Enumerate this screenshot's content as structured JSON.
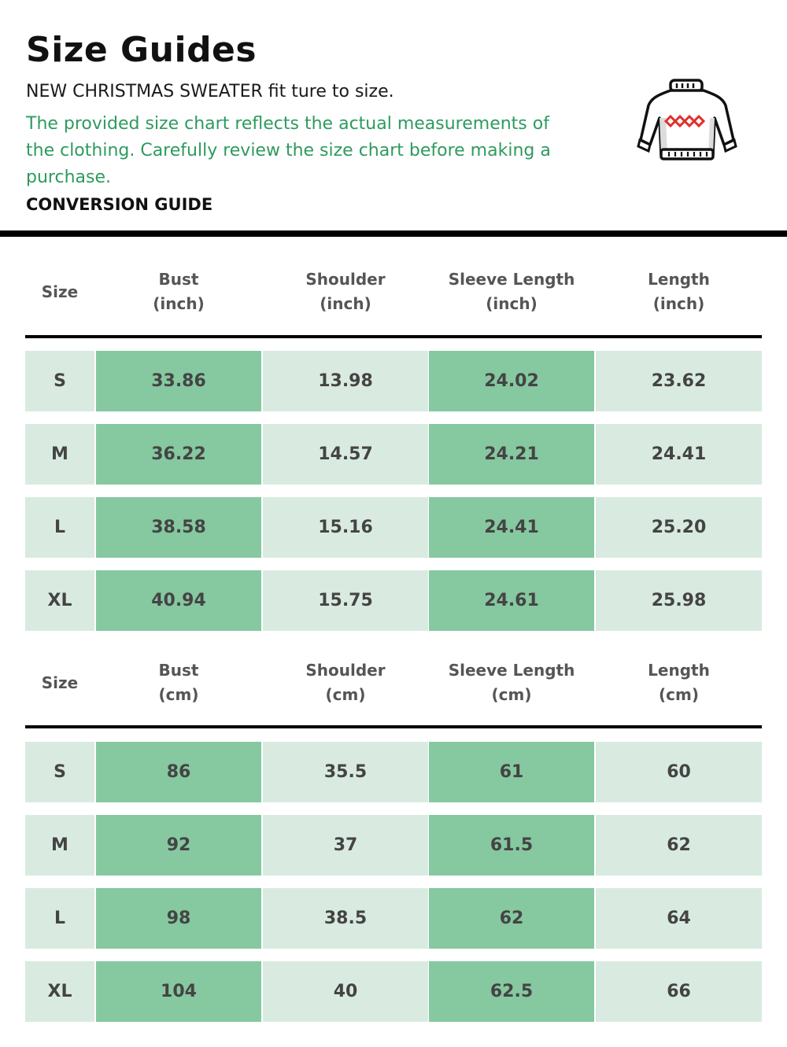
{
  "header": {
    "title": "Size Guides",
    "subtitle": "NEW CHRISTMAS SWEATER fit ture to size.",
    "description": "The provided size chart reflects the actual measurements of the clothing. Carefully review the size chart before making a purchase.",
    "conversion_label": "CONVERSION GUIDE",
    "icon": "christmas-sweater-icon"
  },
  "colors": {
    "accent_text": "#2e9a5e",
    "light_cell": "#d9ebe1",
    "dark_cell": "#86c8a0",
    "sweater_pattern": "#e0302b"
  },
  "inch_table": {
    "columns": [
      [
        "Size"
      ],
      [
        "Bust",
        "(inch)"
      ],
      [
        "Shoulder",
        "(inch)"
      ],
      [
        "Sleeve Length",
        "(inch)"
      ],
      [
        "Length",
        "(inch)"
      ]
    ],
    "rows": [
      [
        "S",
        "33.86",
        "13.98",
        "24.02",
        "23.62"
      ],
      [
        "M",
        "36.22",
        "14.57",
        "24.21",
        "24.41"
      ],
      [
        "L",
        "38.58",
        "15.16",
        "24.41",
        "25.20"
      ],
      [
        "XL",
        "40.94",
        "15.75",
        "24.61",
        "25.98"
      ]
    ]
  },
  "cm_table": {
    "columns": [
      [
        "Size"
      ],
      [
        "Bust",
        "(cm)"
      ],
      [
        "Shoulder",
        "(cm)"
      ],
      [
        "Sleeve Length",
        "(cm)"
      ],
      [
        "Length",
        "(cm)"
      ]
    ],
    "rows": [
      [
        "S",
        "86",
        "35.5",
        "61",
        "60"
      ],
      [
        "M",
        "92",
        "37",
        "61.5",
        "62"
      ],
      [
        "L",
        "98",
        "38.5",
        "62",
        "64"
      ],
      [
        "XL",
        "104",
        "40",
        "62.5",
        "66"
      ]
    ]
  }
}
